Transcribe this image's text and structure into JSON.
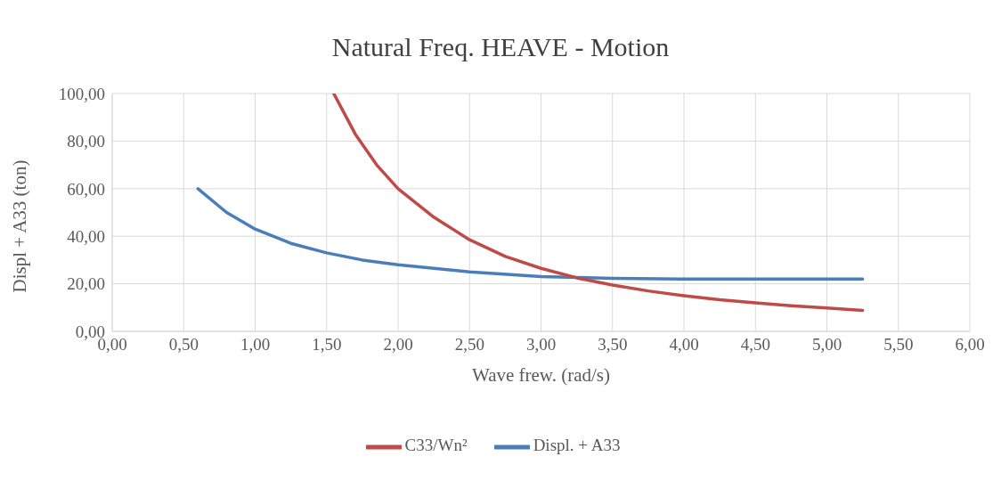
{
  "chart_data": {
    "type": "line",
    "title": "Natural Freq. HEAVE - Motion",
    "xlabel": "Wave frew. (rad/s)",
    "ylabel": "Displ + A33 (ton)",
    "series": [
      {
        "name": "Displ. + A33",
        "color": "#4a7ebb",
        "x": [
          0.6,
          0.8,
          1.0,
          1.25,
          1.5,
          1.75,
          2.0,
          2.5,
          3.0,
          3.5,
          4.0,
          4.5,
          5.0,
          5.25
        ],
        "values": [
          60,
          50,
          43,
          37,
          33,
          30,
          28,
          25,
          23,
          22.3,
          22,
          22,
          22,
          22
        ]
      },
      {
        "name": "C33/Wn²",
        "color": "#be4b48",
        "x": [
          1.55,
          1.7,
          1.85,
          2.0,
          2.25,
          2.5,
          2.75,
          3.0,
          3.25,
          3.5,
          3.75,
          4.0,
          4.25,
          4.5,
          4.75,
          5.0,
          5.25
        ],
        "values": [
          100,
          83,
          70,
          60,
          48,
          38.5,
          31.5,
          26.5,
          22.5,
          19.5,
          17,
          15,
          13.3,
          12,
          10.8,
          9.8,
          8.8
        ]
      }
    ],
    "xlim": [
      0,
      6
    ],
    "xticks": [
      {
        "value": 0,
        "label": "0,00"
      },
      {
        "value": 0.5,
        "label": "0,50"
      },
      {
        "value": 1,
        "label": "1,00"
      },
      {
        "value": 1.5,
        "label": "1,50"
      },
      {
        "value": 2,
        "label": "2,00"
      },
      {
        "value": 2.5,
        "label": "2,50"
      },
      {
        "value": 3,
        "label": "3,00"
      },
      {
        "value": 3.5,
        "label": "3,50"
      },
      {
        "value": 4,
        "label": "4,00"
      },
      {
        "value": 4.5,
        "label": "4,50"
      },
      {
        "value": 5,
        "label": "5,00"
      },
      {
        "value": 5.5,
        "label": "5,50"
      },
      {
        "value": 6,
        "label": "6,00"
      }
    ],
    "ylim": [
      0,
      100
    ],
    "yticks": [
      {
        "value": 0,
        "label": "0,00"
      },
      {
        "value": 20,
        "label": "20,00"
      },
      {
        "value": 40,
        "label": "40,00"
      },
      {
        "value": 60,
        "label": "60,00"
      },
      {
        "value": 80,
        "label": "80,00"
      },
      {
        "value": 100,
        "label": "100,00"
      }
    ],
    "grid": true,
    "legend": "bottom",
    "marker": "none",
    "line_style": "solid"
  }
}
